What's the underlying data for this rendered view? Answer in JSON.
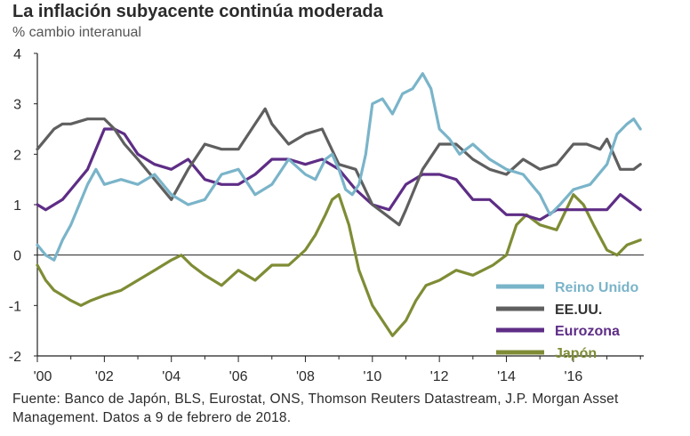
{
  "colors": {
    "uk": "#7ab4c9",
    "us": "#5f5f5f",
    "ez": "#5e2d86",
    "jp": "#7f8c35",
    "axis": "#222222"
  },
  "chart_data": {
    "type": "line",
    "title": "La inflación subyacente continúa moderada",
    "subtitle": "% cambio interanual",
    "xlabel": "",
    "ylabel": "% cambio interanual",
    "ylim": [
      -2,
      4
    ],
    "xlim": [
      2000,
      2018.1
    ],
    "yticks": [
      4,
      3,
      2,
      1,
      0,
      -1,
      -2
    ],
    "ytick_labels": [
      "4",
      "3",
      "2",
      "1",
      "0",
      "-1",
      "-2"
    ],
    "xticks": [
      2000,
      2002,
      2004,
      2006,
      2008,
      2010,
      2012,
      2014,
      2016
    ],
    "xtick_labels": [
      "'00",
      "'02",
      "'04",
      "'06",
      "'08",
      "'10",
      "'12",
      "'14",
      "'16"
    ],
    "legend_position": "bottom-right",
    "series": [
      {
        "name": "Reino Unido",
        "color_key": "uk",
        "x": [
          2000,
          2000.25,
          2000.5,
          2000.75,
          2001,
          2001.25,
          2001.5,
          2001.75,
          2002,
          2002.5,
          2003,
          2003.5,
          2004,
          2004.5,
          2005,
          2005.5,
          2006,
          2006.5,
          2007,
          2007.5,
          2008,
          2008.3,
          2008.6,
          2008.8,
          2009,
          2009.2,
          2009.4,
          2009.6,
          2009.8,
          2010,
          2010.3,
          2010.6,
          2010.9,
          2011.2,
          2011.5,
          2011.75,
          2012,
          2012.3,
          2012.6,
          2013,
          2013.5,
          2014,
          2014.5,
          2015,
          2015.3,
          2015.6,
          2016,
          2016.5,
          2017,
          2017.3,
          2017.6,
          2017.8,
          2018
        ],
        "values": [
          0.2,
          0.0,
          -0.1,
          0.3,
          0.6,
          1.0,
          1.4,
          1.7,
          1.4,
          1.5,
          1.4,
          1.6,
          1.2,
          1.0,
          1.1,
          1.6,
          1.7,
          1.2,
          1.4,
          1.9,
          1.6,
          1.5,
          1.9,
          2.0,
          1.7,
          1.3,
          1.2,
          1.4,
          2.0,
          3.0,
          3.1,
          2.8,
          3.2,
          3.3,
          3.6,
          3.3,
          2.5,
          2.3,
          2.0,
          2.2,
          1.9,
          1.7,
          1.6,
          1.2,
          0.8,
          1.0,
          1.3,
          1.4,
          1.8,
          2.4,
          2.6,
          2.7,
          2.5
        ]
      },
      {
        "name": "EE.UU.",
        "color_key": "us",
        "x": [
          2000,
          2000.25,
          2000.5,
          2000.75,
          2001,
          2001.5,
          2002,
          2002.3,
          2002.6,
          2003,
          2003.5,
          2004,
          2004.5,
          2005,
          2005.5,
          2006,
          2006.5,
          2006.8,
          2007,
          2007.5,
          2008,
          2008.5,
          2009,
          2009.5,
          2010,
          2010.4,
          2010.8,
          2011,
          2011.5,
          2012,
          2012.5,
          2013,
          2013.5,
          2014,
          2014.5,
          2015,
          2015.5,
          2016,
          2016.4,
          2016.8,
          2017,
          2017.4,
          2017.8,
          2018
        ],
        "values": [
          2.1,
          2.3,
          2.5,
          2.6,
          2.6,
          2.7,
          2.7,
          2.5,
          2.2,
          1.9,
          1.5,
          1.1,
          1.7,
          2.2,
          2.1,
          2.1,
          2.6,
          2.9,
          2.6,
          2.2,
          2.4,
          2.5,
          1.8,
          1.7,
          1.0,
          0.8,
          0.6,
          0.9,
          1.7,
          2.2,
          2.2,
          1.9,
          1.7,
          1.6,
          1.9,
          1.7,
          1.8,
          2.2,
          2.2,
          2.1,
          2.3,
          1.7,
          1.7,
          1.8
        ]
      },
      {
        "name": "Eurozona",
        "color_key": "ez",
        "x": [
          2000,
          2000.25,
          2000.5,
          2000.75,
          2001,
          2001.5,
          2002,
          2002.3,
          2002.6,
          2003,
          2003.5,
          2004,
          2004.5,
          2005,
          2005.5,
          2006,
          2006.5,
          2007,
          2007.5,
          2008,
          2008.5,
          2009,
          2009.5,
          2010,
          2010.5,
          2011,
          2011.5,
          2012,
          2012.5,
          2013,
          2013.5,
          2014,
          2014.5,
          2015,
          2015.5,
          2016,
          2016.5,
          2017,
          2017.4,
          2017.8,
          2018
        ],
        "values": [
          1.0,
          0.9,
          1.0,
          1.1,
          1.3,
          1.7,
          2.5,
          2.5,
          2.4,
          2.0,
          1.8,
          1.7,
          1.9,
          1.5,
          1.4,
          1.4,
          1.6,
          1.9,
          1.9,
          1.8,
          1.9,
          1.7,
          1.3,
          1.0,
          0.9,
          1.4,
          1.6,
          1.6,
          1.5,
          1.1,
          1.1,
          0.8,
          0.8,
          0.7,
          0.9,
          0.9,
          0.9,
          0.9,
          1.2,
          1.0,
          0.9
        ]
      },
      {
        "name": "Japón",
        "color_key": "jp",
        "x": [
          2000,
          2000.25,
          2000.5,
          2000.75,
          2001,
          2001.3,
          2001.6,
          2002,
          2002.5,
          2003,
          2003.5,
          2004,
          2004.3,
          2004.6,
          2005,
          2005.5,
          2006,
          2006.5,
          2007,
          2007.5,
          2008,
          2008.3,
          2008.6,
          2008.8,
          2009,
          2009.3,
          2009.6,
          2010,
          2010.3,
          2010.6,
          2011,
          2011.3,
          2011.6,
          2012,
          2012.5,
          2013,
          2013.3,
          2013.6,
          2014,
          2014.3,
          2014.6,
          2015,
          2015.5,
          2016,
          2016.3,
          2016.6,
          2017,
          2017.3,
          2017.6,
          2018
        ],
        "values": [
          -0.2,
          -0.5,
          -0.7,
          -0.8,
          -0.9,
          -1.0,
          -0.9,
          -0.8,
          -0.7,
          -0.5,
          -0.3,
          -0.1,
          0.0,
          -0.2,
          -0.4,
          -0.6,
          -0.3,
          -0.5,
          -0.2,
          -0.2,
          0.1,
          0.4,
          0.8,
          1.1,
          1.2,
          0.6,
          -0.3,
          -1.0,
          -1.3,
          -1.6,
          -1.3,
          -0.9,
          -0.6,
          -0.5,
          -0.3,
          -0.4,
          -0.3,
          -0.2,
          0.0,
          0.6,
          0.8,
          0.6,
          0.5,
          1.2,
          1.0,
          0.6,
          0.1,
          0.0,
          0.2,
          0.3
        ]
      }
    ]
  },
  "source_text": "Fuente: Banco de Japón, BLS, Eurostat, ONS, Thomson Reuters Datastream, J.P. Morgan Asset Management. Datos a 9 de febrero de 2018."
}
